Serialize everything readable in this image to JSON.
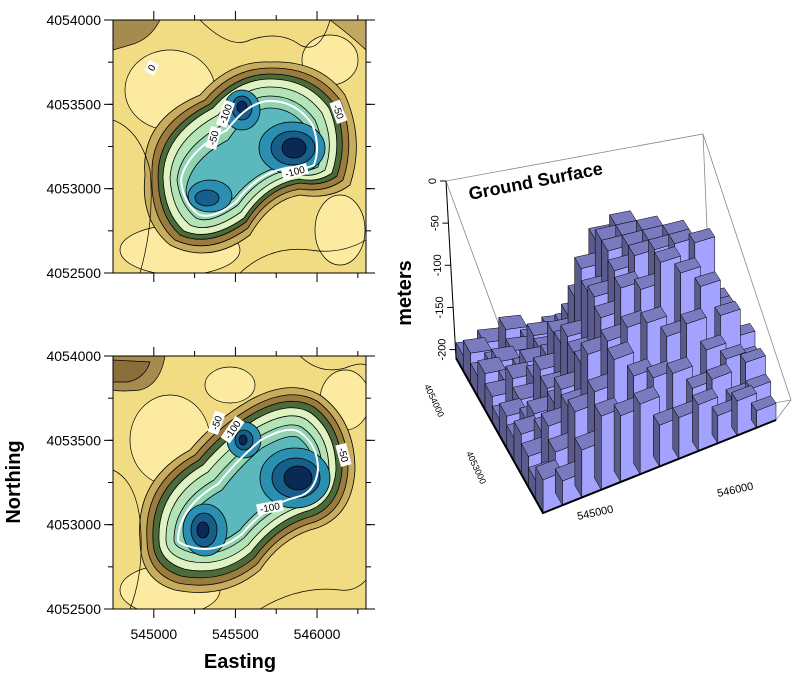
{
  "chart_data": [
    {
      "type": "heatmap",
      "panel": "top-contour",
      "xlim": [
        544750,
        546300
      ],
      "ylim": [
        4052500,
        4054000
      ],
      "y_ticks": [
        "4052500",
        "4053000",
        "4053500",
        "4054000"
      ],
      "contour_labels": [
        "0",
        "-50",
        "-100",
        "-50",
        "-100"
      ],
      "basins": [
        {
          "x": 545520,
          "y": 4053500,
          "depth": -200
        },
        {
          "x": 545850,
          "y": 4053250,
          "depth": -200
        },
        {
          "x": 545330,
          "y": 4052950,
          "depth": -150
        }
      ]
    },
    {
      "type": "heatmap",
      "panel": "bottom-contour",
      "xlim": [
        544750,
        546300
      ],
      "ylim": [
        4052500,
        4054000
      ],
      "x_ticks": [
        "545000",
        "545500",
        "546000"
      ],
      "y_ticks": [
        "4052500",
        "4053000",
        "4053500",
        "4054000"
      ],
      "xlabel": "Easting",
      "ylabel": "Northing",
      "contour_labels": [
        "-50",
        "-100",
        "-50",
        "-100"
      ],
      "basins": [
        {
          "x": 545550,
          "y": 4053500,
          "depth": -200
        },
        {
          "x": 545850,
          "y": 4053250,
          "depth": -200
        },
        {
          "x": 545300,
          "y": 4052970,
          "depth": -200
        }
      ]
    },
    {
      "type": "bar",
      "panel": "3d-histogram",
      "title": "Ground Surface",
      "zlabel": "meters",
      "z_ticks": [
        "0",
        "-50",
        "-100",
        "-150",
        "-200"
      ],
      "easting_ticks": [
        "545000",
        "546000"
      ],
      "northing_ticks": [
        "4054000",
        "4053000"
      ],
      "bar_color": "#a3a3ff"
    }
  ]
}
